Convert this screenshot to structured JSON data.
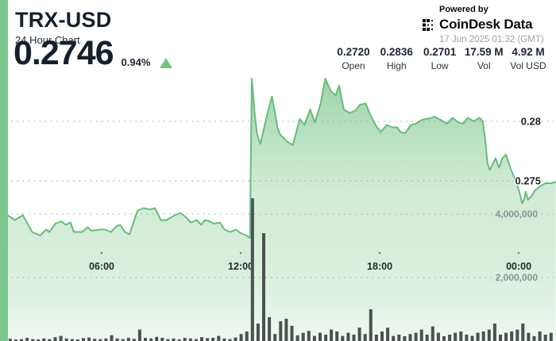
{
  "header": {
    "symbol": "TRX-USD",
    "subtitle": "24 Hour Chart",
    "price": "0.2746",
    "change_pct": "0.94%",
    "change_direction": "up"
  },
  "powered_by": {
    "label": "Powered by",
    "brand": "CoinDesk Data",
    "timestamp": "17 Jun 2025 01:32 (GMT)"
  },
  "stats": [
    {
      "value": "0.2720",
      "label": "Open"
    },
    {
      "value": "0.2836",
      "label": "High"
    },
    {
      "value": "0.2701",
      "label": "Low"
    },
    {
      "value": "17.59 M",
      "label": "Vol"
    },
    {
      "value": "4.92 M",
      "label": "Vol USD"
    }
  ],
  "colors": {
    "accent_strip": "#7cc88e",
    "line_green": "#69bb7a",
    "fill_green_top": "#84c992",
    "fill_green_bottom": "#f0f7f1",
    "bar_gray": "#4b5150",
    "text_dark": "#15202c",
    "text_gray": "#9aa0a6",
    "up_triangle": "#72c281"
  },
  "chart_data": {
    "type": "area",
    "title": "TRX-USD 24 Hour Chart",
    "x_axis": {
      "unit": "hours (GMT)",
      "ticks": [
        {
          "hour": 6,
          "label": "06:00"
        },
        {
          "hour": 12,
          "label": "12:00"
        },
        {
          "hour": 18,
          "label": "18:00"
        },
        {
          "hour": 24,
          "label": "00:00"
        }
      ]
    },
    "price_axis": {
      "side": "right",
      "ticks": [
        {
          "value": 0.28,
          "label": "0.28"
        },
        {
          "value": 0.275,
          "label": "0.275"
        }
      ]
    },
    "volume_axis": {
      "side": "right",
      "ticks": [
        {
          "value_m": 4,
          "label": "4,000,000"
        },
        {
          "value_m": 2,
          "label": "2,000,000"
        }
      ]
    },
    "price_series": [
      [
        1.95,
        0.2721
      ],
      [
        2.25,
        0.2717
      ],
      [
        2.6,
        0.2721
      ],
      [
        3.0,
        0.2707
      ],
      [
        3.35,
        0.2704
      ],
      [
        3.6,
        0.2709
      ],
      [
        3.75,
        0.2707
      ],
      [
        4.0,
        0.2714
      ],
      [
        4.25,
        0.2716
      ],
      [
        4.45,
        0.2713
      ],
      [
        4.65,
        0.2715
      ],
      [
        4.8,
        0.2707
      ],
      [
        5.15,
        0.2707
      ],
      [
        5.4,
        0.2711
      ],
      [
        5.55,
        0.2708
      ],
      [
        5.9,
        0.2709
      ],
      [
        6.15,
        0.2709
      ],
      [
        6.4,
        0.2707
      ],
      [
        6.65,
        0.2712
      ],
      [
        6.8,
        0.2713
      ],
      [
        7.0,
        0.2707
      ],
      [
        7.2,
        0.2705
      ],
      [
        7.55,
        0.2725
      ],
      [
        7.8,
        0.2727
      ],
      [
        8.1,
        0.2726
      ],
      [
        8.3,
        0.2727
      ],
      [
        8.55,
        0.2717
      ],
      [
        8.8,
        0.2717
      ],
      [
        9.15,
        0.2721
      ],
      [
        9.4,
        0.2723
      ],
      [
        9.6,
        0.272
      ],
      [
        9.85,
        0.2715
      ],
      [
        10.1,
        0.2717
      ],
      [
        10.3,
        0.2713
      ],
      [
        10.45,
        0.2717
      ],
      [
        10.65,
        0.2716
      ],
      [
        10.85,
        0.2714
      ],
      [
        11.1,
        0.2715
      ],
      [
        11.3,
        0.2709
      ],
      [
        11.55,
        0.2707
      ],
      [
        11.8,
        0.2709
      ],
      [
        12.0,
        0.2706
      ],
      [
        12.25,
        0.2704
      ],
      [
        12.4,
        0.2702
      ],
      [
        12.48,
        0.2836
      ],
      [
        12.6,
        0.2808
      ],
      [
        12.7,
        0.279
      ],
      [
        12.85,
        0.2781
      ],
      [
        13.1,
        0.2802
      ],
      [
        13.35,
        0.2821
      ],
      [
        13.6,
        0.2794
      ],
      [
        13.7,
        0.2789
      ],
      [
        14.0,
        0.2783
      ],
      [
        14.25,
        0.278
      ],
      [
        14.55,
        0.2802
      ],
      [
        14.75,
        0.2797
      ],
      [
        15.0,
        0.281
      ],
      [
        15.2,
        0.2799
      ],
      [
        15.45,
        0.2815
      ],
      [
        15.65,
        0.2836
      ],
      [
        15.9,
        0.2825
      ],
      [
        16.1,
        0.2822
      ],
      [
        16.25,
        0.283
      ],
      [
        16.45,
        0.281
      ],
      [
        16.7,
        0.2807
      ],
      [
        16.95,
        0.2809
      ],
      [
        17.15,
        0.2814
      ],
      [
        17.4,
        0.2815
      ],
      [
        17.6,
        0.2805
      ],
      [
        17.85,
        0.2796
      ],
      [
        18.05,
        0.2791
      ],
      [
        18.3,
        0.2797
      ],
      [
        18.55,
        0.2795
      ],
      [
        18.75,
        0.2795
      ],
      [
        18.9,
        0.2791
      ],
      [
        19.1,
        0.279
      ],
      [
        19.35,
        0.2797
      ],
      [
        19.55,
        0.2798
      ],
      [
        19.8,
        0.2801
      ],
      [
        20.0,
        0.2802
      ],
      [
        20.25,
        0.2803
      ],
      [
        20.35,
        0.2804
      ],
      [
        20.65,
        0.2801
      ],
      [
        20.9,
        0.2798
      ],
      [
        21.15,
        0.2803
      ],
      [
        21.4,
        0.2799
      ],
      [
        21.6,
        0.2798
      ],
      [
        21.8,
        0.2803
      ],
      [
        22.05,
        0.28
      ],
      [
        22.3,
        0.2803
      ],
      [
        22.45,
        0.28
      ],
      [
        22.55,
        0.2785
      ],
      [
        22.65,
        0.2765
      ],
      [
        22.75,
        0.2759
      ],
      [
        22.9,
        0.2765
      ],
      [
        23.0,
        0.2769
      ],
      [
        23.15,
        0.2761
      ],
      [
        23.3,
        0.2769
      ],
      [
        23.45,
        0.2772
      ],
      [
        23.65,
        0.276
      ],
      [
        23.9,
        0.2749
      ],
      [
        24.05,
        0.2739
      ],
      [
        24.15,
        0.2731
      ],
      [
        24.25,
        0.2735
      ],
      [
        24.3,
        0.2741
      ],
      [
        24.4,
        0.2734
      ],
      [
        24.55,
        0.2737
      ],
      [
        24.7,
        0.2742
      ],
      [
        24.9,
        0.2745
      ],
      [
        25.15,
        0.2748
      ],
      [
        25.4,
        0.2748
      ],
      [
        25.6,
        0.2749
      ]
    ],
    "volume_series": {
      "unit": "millions",
      "t_start": 2.05,
      "t_step": 0.2432,
      "values": [
        0.07,
        0.05,
        0.06,
        0.1,
        0.06,
        0.05,
        0.08,
        0.06,
        0.12,
        0.16,
        0.08,
        0.06,
        0.05,
        0.09,
        0.11,
        0.07,
        0.06,
        0.08,
        0.18,
        0.08,
        0.06,
        0.1,
        0.07,
        0.36,
        0.1,
        0.08,
        0.13,
        0.1,
        0.06,
        0.08,
        0.05,
        0.1,
        0.08,
        0.06,
        0.12,
        0.09,
        0.1,
        0.16,
        0.08,
        0.06,
        0.11,
        0.22,
        0.3,
        4.5,
        0.55,
        3.4,
        0.75,
        0.22,
        0.62,
        0.7,
        0.48,
        0.18,
        0.26,
        0.32,
        0.16,
        0.26,
        0.2,
        0.36,
        0.3,
        0.16,
        0.26,
        0.2,
        0.42,
        0.22,
        1.0,
        0.2,
        0.3,
        0.42,
        0.16,
        0.2,
        0.15,
        0.22,
        0.26,
        0.36,
        0.2,
        0.46,
        0.26,
        0.15,
        0.2,
        0.26,
        0.3,
        0.2,
        0.16,
        0.26,
        0.3,
        0.36,
        0.55,
        0.2,
        0.26,
        0.3,
        0.36,
        0.55,
        0.26,
        0.15,
        0.3,
        0.2,
        0.26
      ]
    }
  }
}
